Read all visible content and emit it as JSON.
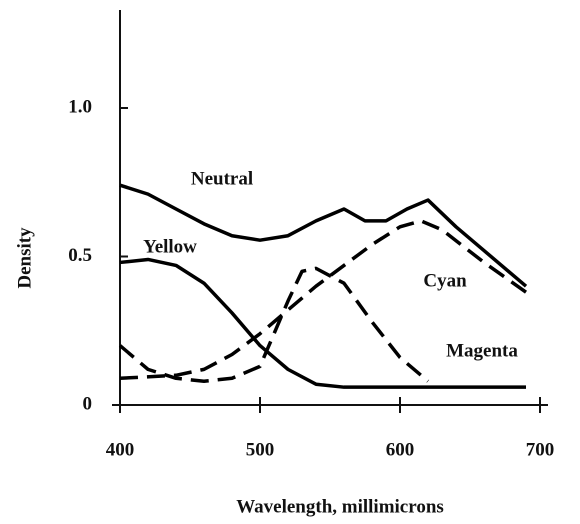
{
  "chart_data": {
    "type": "line",
    "xlabel": "Wavelength, millimicrons",
    "ylabel": "Density",
    "xlim": [
      400,
      700
    ],
    "ylim": [
      0,
      1.33
    ],
    "xticks": [
      400,
      500,
      600,
      700
    ],
    "yticks": [
      0,
      0.5,
      {
        "value": 1,
        "label": "1.0"
      }
    ],
    "series": [
      {
        "name": "Neutral",
        "color": "#000000",
        "dashed": false,
        "x": [
          400,
          420,
          440,
          460,
          480,
          500,
          520,
          540,
          560,
          575,
          590,
          605,
          620,
          640,
          660,
          690
        ],
        "values": [
          0.74,
          0.71,
          0.66,
          0.61,
          0.57,
          0.555,
          0.57,
          0.62,
          0.66,
          0.62,
          0.62,
          0.66,
          0.69,
          0.6,
          0.52,
          0.4
        ]
      },
      {
        "name": "Yellow",
        "color": "#000000",
        "dashed": false,
        "x": [
          400,
          420,
          440,
          460,
          480,
          500,
          520,
          540,
          560,
          600,
          650,
          690
        ],
        "values": [
          0.48,
          0.49,
          0.47,
          0.41,
          0.31,
          0.2,
          0.12,
          0.07,
          0.06,
          0.06,
          0.06,
          0.06
        ]
      },
      {
        "name": "Magenta",
        "color": "#000000",
        "dashed": true,
        "x": [
          400,
          420,
          440,
          460,
          480,
          500,
          520,
          530,
          540,
          560,
          580,
          600,
          620
        ],
        "values": [
          0.2,
          0.12,
          0.09,
          0.08,
          0.09,
          0.13,
          0.35,
          0.45,
          0.46,
          0.41,
          0.28,
          0.16,
          0.08
        ]
      },
      {
        "name": "Cyan",
        "color": "#000000",
        "dashed": true,
        "x": [
          400,
          440,
          460,
          480,
          500,
          520,
          540,
          560,
          580,
          600,
          615,
          630,
          660,
          690
        ],
        "values": [
          0.09,
          0.1,
          0.12,
          0.17,
          0.24,
          0.32,
          0.4,
          0.47,
          0.54,
          0.6,
          0.62,
          0.59,
          0.48,
          0.38
        ]
      }
    ]
  }
}
